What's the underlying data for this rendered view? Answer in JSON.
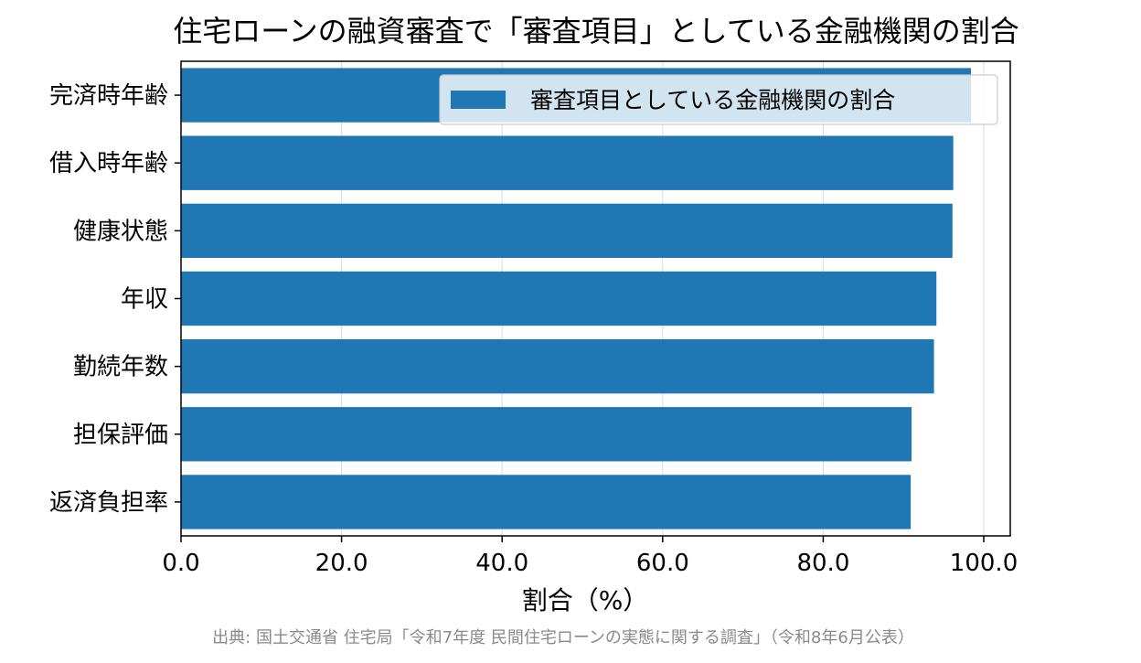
{
  "chart_data": {
    "type": "bar",
    "orientation": "horizontal",
    "title": "住宅ローンの融資審査で「審査項目」としている金融機関の割合",
    "xlabel": "割合（%）",
    "ylabel": "",
    "categories": [
      "完済時年齢",
      "借入時年齢",
      "健康状態",
      "年収",
      "勤続年数",
      "担保評価",
      "返済負担率"
    ],
    "series": [
      {
        "name": "審査項目としている金融機関の割合",
        "values": [
          98.4,
          96.2,
          96.1,
          94.1,
          93.8,
          91.0,
          90.9
        ],
        "color": "#1f77b4"
      }
    ],
    "xlim": [
      0,
      103.3
    ],
    "xticks": [
      "0.0",
      "20.0",
      "40.0",
      "60.0",
      "80.0",
      "100.0"
    ],
    "xtick_values": [
      0,
      20,
      40,
      60,
      80,
      100
    ],
    "grid": "vertical",
    "legend": "top-right",
    "source": "出典: 国土交通省 住宅局「令和7年度 民間住宅ローンの実態に関する調査」（令和8年6月公表）"
  }
}
